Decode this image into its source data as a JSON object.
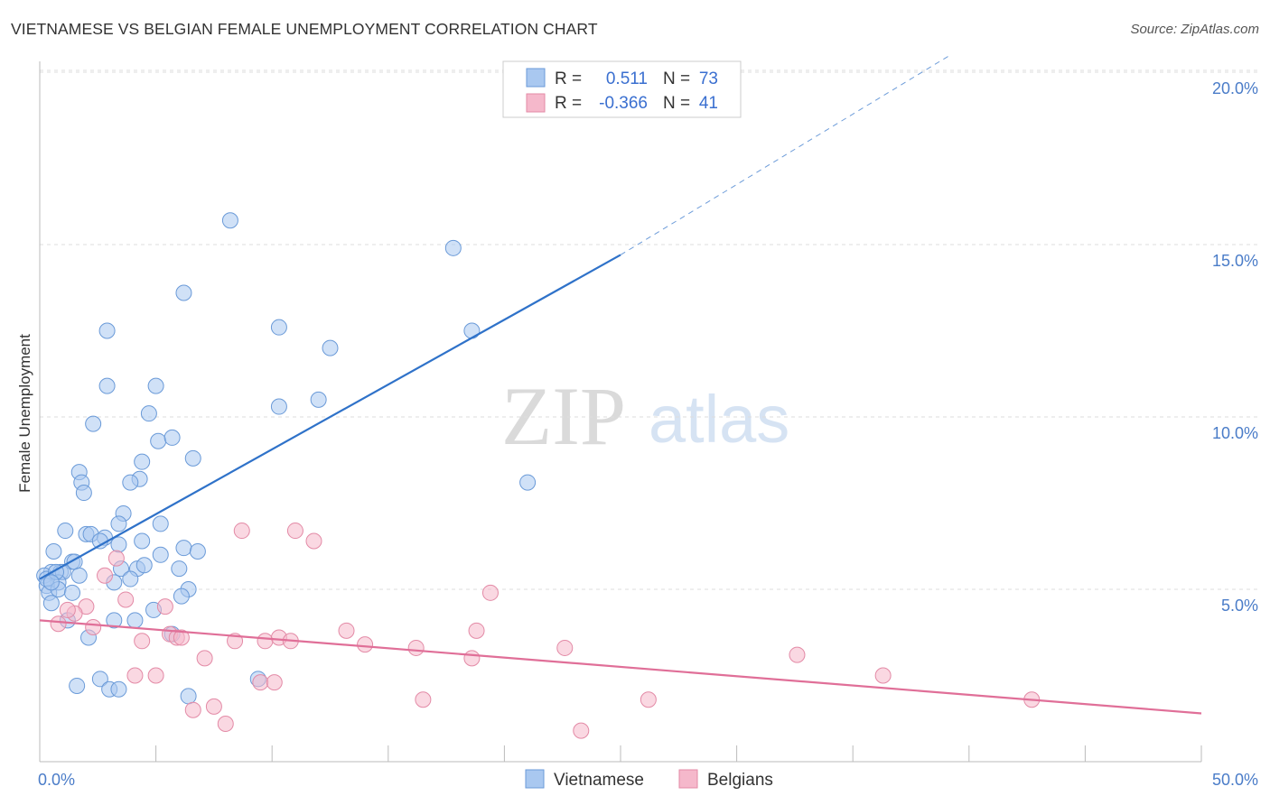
{
  "header": {
    "title": "VIETNAMESE VS BELGIAN FEMALE UNEMPLOYMENT CORRELATION CHART",
    "source": "Source: ZipAtlas.com"
  },
  "watermark": {
    "part1": "ZIP",
    "part2": "atlas"
  },
  "colors": {
    "blue_fill": "#a9c8f0",
    "blue_stroke": "#6a9ad8",
    "blue_line": "#2f72c9",
    "pink_fill": "#f5b8cb",
    "pink_stroke": "#e38aa6",
    "pink_line": "#e06f98",
    "tick_label": "#4a7cc8"
  },
  "stats_legend": [
    {
      "r_label": "R =",
      "r_value": "0.511",
      "n_label": "N =",
      "n_value": "73"
    },
    {
      "r_label": "R =",
      "r_value": "-0.366",
      "n_label": "N =",
      "n_value": "41"
    }
  ],
  "chart_data": {
    "type": "scatter",
    "title": "VIETNAMESE VS BELGIAN FEMALE UNEMPLOYMENT CORRELATION CHART",
    "xlabel": "",
    "ylabel": "Female Unemployment",
    "xlim": [
      0,
      50
    ],
    "ylim": [
      0,
      20
    ],
    "x_tick_labels": [
      "0.0%",
      "50.0%"
    ],
    "y_ticks": [
      5,
      10,
      15,
      20
    ],
    "y_tick_labels": [
      "5.0%",
      "10.0%",
      "15.0%",
      "20.0%"
    ],
    "grid": true,
    "legend_position": "bottom",
    "series": [
      {
        "name": "Vietnamese",
        "r": 0.511,
        "n": 73,
        "trend": {
          "x": [
            0,
            25
          ],
          "y": [
            5.3,
            14.7
          ],
          "dashed_extension_to_x": 39.2,
          "dashed_extension_y": 20.5
        },
        "points": [
          [
            8.2,
            15.7
          ],
          [
            6.2,
            13.6
          ],
          [
            2.9,
            12.5
          ],
          [
            10.3,
            12.6
          ],
          [
            12.5,
            12.0
          ],
          [
            2.9,
            10.9
          ],
          [
            5.0,
            10.9
          ],
          [
            10.3,
            10.3
          ],
          [
            12.0,
            10.5
          ],
          [
            2.3,
            9.8
          ],
          [
            4.7,
            10.1
          ],
          [
            5.1,
            9.3
          ],
          [
            5.7,
            9.4
          ],
          [
            6.6,
            8.8
          ],
          [
            4.4,
            8.7
          ],
          [
            1.7,
            8.4
          ],
          [
            4.3,
            8.2
          ],
          [
            3.9,
            8.1
          ],
          [
            1.8,
            8.1
          ],
          [
            1.9,
            7.8
          ],
          [
            3.6,
            7.2
          ],
          [
            3.4,
            6.9
          ],
          [
            5.2,
            6.9
          ],
          [
            1.1,
            6.7
          ],
          [
            2.0,
            6.6
          ],
          [
            2.2,
            6.6
          ],
          [
            2.8,
            6.5
          ],
          [
            2.6,
            6.4
          ],
          [
            3.4,
            6.3
          ],
          [
            4.4,
            6.4
          ],
          [
            6.2,
            6.2
          ],
          [
            5.2,
            6.0
          ],
          [
            6.8,
            6.1
          ],
          [
            0.6,
            6.1
          ],
          [
            1.4,
            5.8
          ],
          [
            1.5,
            5.8
          ],
          [
            0.5,
            5.5
          ],
          [
            0.9,
            5.5
          ],
          [
            1.0,
            5.5
          ],
          [
            1.7,
            5.4
          ],
          [
            3.5,
            5.6
          ],
          [
            4.2,
            5.6
          ],
          [
            4.5,
            5.7
          ],
          [
            6.0,
            5.6
          ],
          [
            3.9,
            5.3
          ],
          [
            0.8,
            5.2
          ],
          [
            0.2,
            5.4
          ],
          [
            0.3,
            5.1
          ],
          [
            3.2,
            5.2
          ],
          [
            0.4,
            4.9
          ],
          [
            0.8,
            5.0
          ],
          [
            1.4,
            4.9
          ],
          [
            6.4,
            5.0
          ],
          [
            6.1,
            4.8
          ],
          [
            0.5,
            4.6
          ],
          [
            4.9,
            4.4
          ],
          [
            1.2,
            4.1
          ],
          [
            3.2,
            4.1
          ],
          [
            4.1,
            4.1
          ],
          [
            5.7,
            3.7
          ],
          [
            2.1,
            3.6
          ],
          [
            18.6,
            12.5
          ],
          [
            17.8,
            14.9
          ],
          [
            21.0,
            8.1
          ],
          [
            2.6,
            2.4
          ],
          [
            9.4,
            2.4
          ],
          [
            1.6,
            2.2
          ],
          [
            3.0,
            2.1
          ],
          [
            3.4,
            2.1
          ],
          [
            6.4,
            1.9
          ],
          [
            0.3,
            5.3
          ],
          [
            0.7,
            5.5
          ],
          [
            0.5,
            5.2
          ]
        ]
      },
      {
        "name": "Belgians",
        "r": -0.366,
        "n": 41,
        "trend": {
          "x": [
            0,
            50
          ],
          "y": [
            4.1,
            1.4
          ]
        },
        "points": [
          [
            8.7,
            6.7
          ],
          [
            11.0,
            6.7
          ],
          [
            11.8,
            6.4
          ],
          [
            19.4,
            4.9
          ],
          [
            3.3,
            5.9
          ],
          [
            2.8,
            5.4
          ],
          [
            3.7,
            4.7
          ],
          [
            5.4,
            4.5
          ],
          [
            2.0,
            4.5
          ],
          [
            1.5,
            4.3
          ],
          [
            0.8,
            4.0
          ],
          [
            2.3,
            3.9
          ],
          [
            5.6,
            3.7
          ],
          [
            5.9,
            3.6
          ],
          [
            6.1,
            3.6
          ],
          [
            8.4,
            3.5
          ],
          [
            9.7,
            3.5
          ],
          [
            10.3,
            3.6
          ],
          [
            10.8,
            3.5
          ],
          [
            13.2,
            3.8
          ],
          [
            14.0,
            3.4
          ],
          [
            16.2,
            3.3
          ],
          [
            18.8,
            3.8
          ],
          [
            18.6,
            3.0
          ],
          [
            22.6,
            3.3
          ],
          [
            32.6,
            3.1
          ],
          [
            4.4,
            3.5
          ],
          [
            7.1,
            3.0
          ],
          [
            4.1,
            2.5
          ],
          [
            5.0,
            2.5
          ],
          [
            9.5,
            2.3
          ],
          [
            10.1,
            2.3
          ],
          [
            36.3,
            2.5
          ],
          [
            16.5,
            1.8
          ],
          [
            26.2,
            1.8
          ],
          [
            42.7,
            1.8
          ],
          [
            7.5,
            1.6
          ],
          [
            6.6,
            1.5
          ],
          [
            8.0,
            1.1
          ],
          [
            23.3,
            0.9
          ],
          [
            1.2,
            4.4
          ]
        ]
      }
    ]
  },
  "bottom_legend": [
    {
      "label": "Vietnamese"
    },
    {
      "label": "Belgians"
    }
  ]
}
